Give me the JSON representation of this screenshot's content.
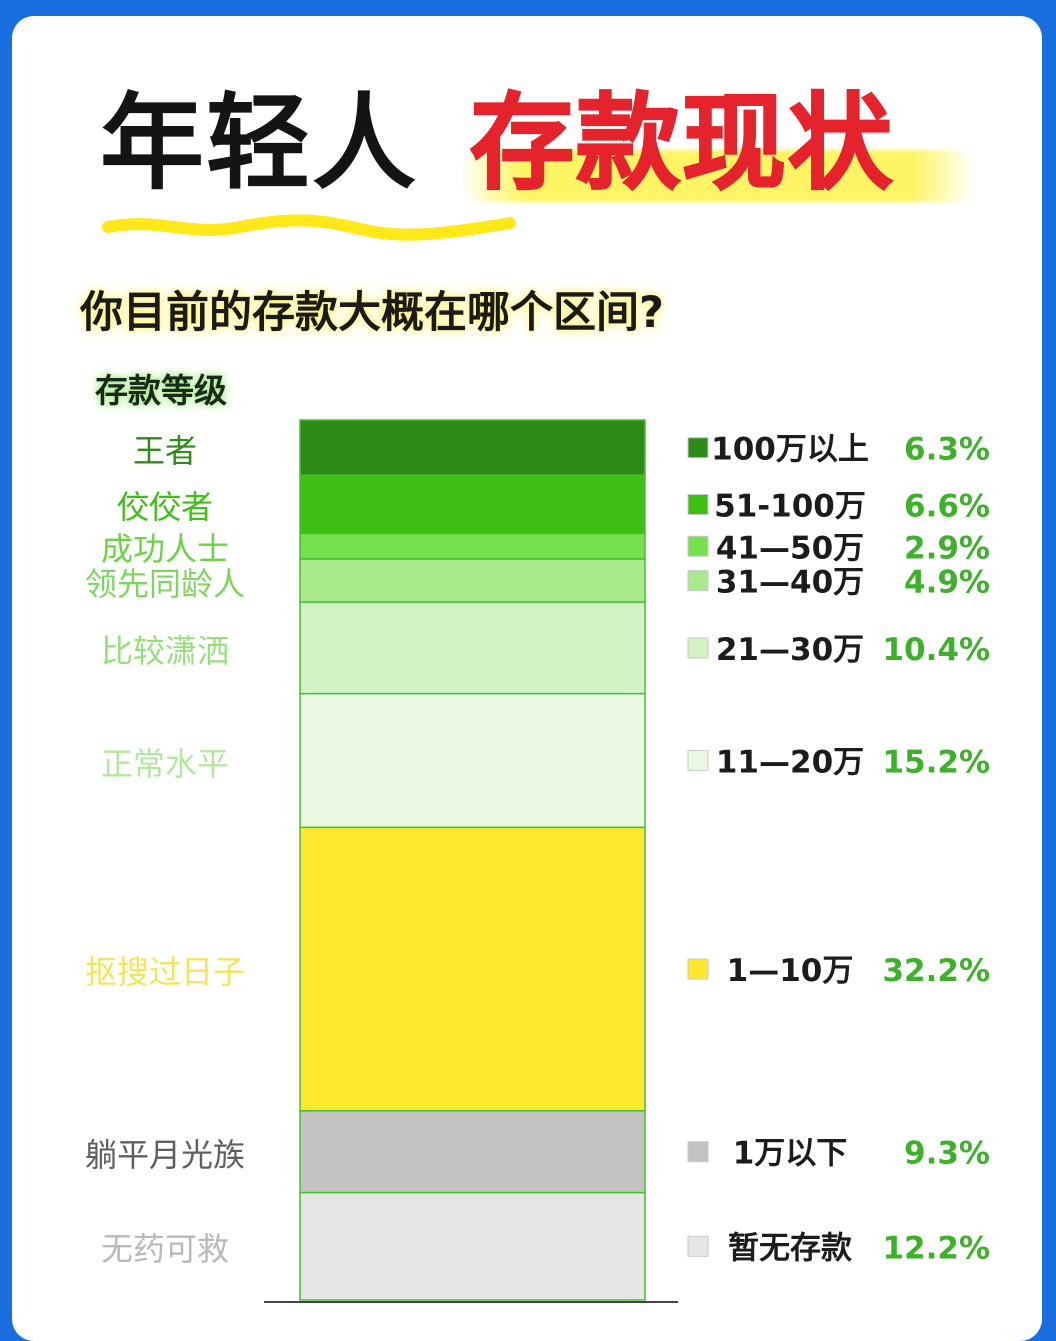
{
  "header": {
    "title_part1": "年轻人",
    "title_part2": "存款现状",
    "question": "你目前的存款大概在哪个区间?",
    "tier_header": "存款等级"
  },
  "colors": {
    "background": "#1a6fe0",
    "title_red": "#e5232c",
    "percent_green": "#3db12a",
    "highlight_yellow": "#fff45c"
  },
  "chart_data": {
    "type": "bar",
    "stacked": true,
    "title": "你目前的存款大概在哪个区间?",
    "y_order": "top-to-bottom",
    "segments": [
      {
        "tier": "王者",
        "range": "100万以上",
        "percent_label": "6.3%",
        "value": 6.3,
        "color": "#2e8b17",
        "tier_color": "#2e8b17"
      },
      {
        "tier": "佼佼者",
        "range": "51-100万",
        "percent_label": "6.6%",
        "value": 6.6,
        "color": "#3ebf14",
        "tier_color": "#3ebf14"
      },
      {
        "tier": "成功人士",
        "range": "41—50万",
        "percent_label": "2.9%",
        "value": 2.9,
        "color": "#77e04e",
        "tier_color": "#6ad446"
      },
      {
        "tier": "领先同龄人",
        "range": "31—40万",
        "percent_label": "4.9%",
        "value": 4.9,
        "color": "#a8ea8c",
        "tier_color": "#7dd65e"
      },
      {
        "tier": "比较潇洒",
        "range": "21—30万",
        "percent_label": "10.4%",
        "value": 10.4,
        "color": "#d3f3c4",
        "tier_color": "#95e07a"
      },
      {
        "tier": "正常水平",
        "range": "11—20万",
        "percent_label": "15.2%",
        "value": 15.2,
        "color": "#eaf8e2",
        "tier_color": "#b3e8a0"
      },
      {
        "tier": "抠搜过日子",
        "range": "1—10万",
        "percent_label": "32.2%",
        "value": 32.2,
        "color": "#fde82f",
        "tier_color": "#f5e35a"
      },
      {
        "tier": "躺平月光族",
        "range": "1万以下",
        "percent_label": "9.3%",
        "value": 9.3,
        "color": "#c3c3c3",
        "tier_color": "#5f5f5f"
      },
      {
        "tier": "无药可救",
        "range": "暂无存款",
        "percent_label": "12.2%",
        "value": 12.2,
        "color": "#e6e6e6",
        "tier_color": "#b9b9b9"
      }
    ]
  }
}
